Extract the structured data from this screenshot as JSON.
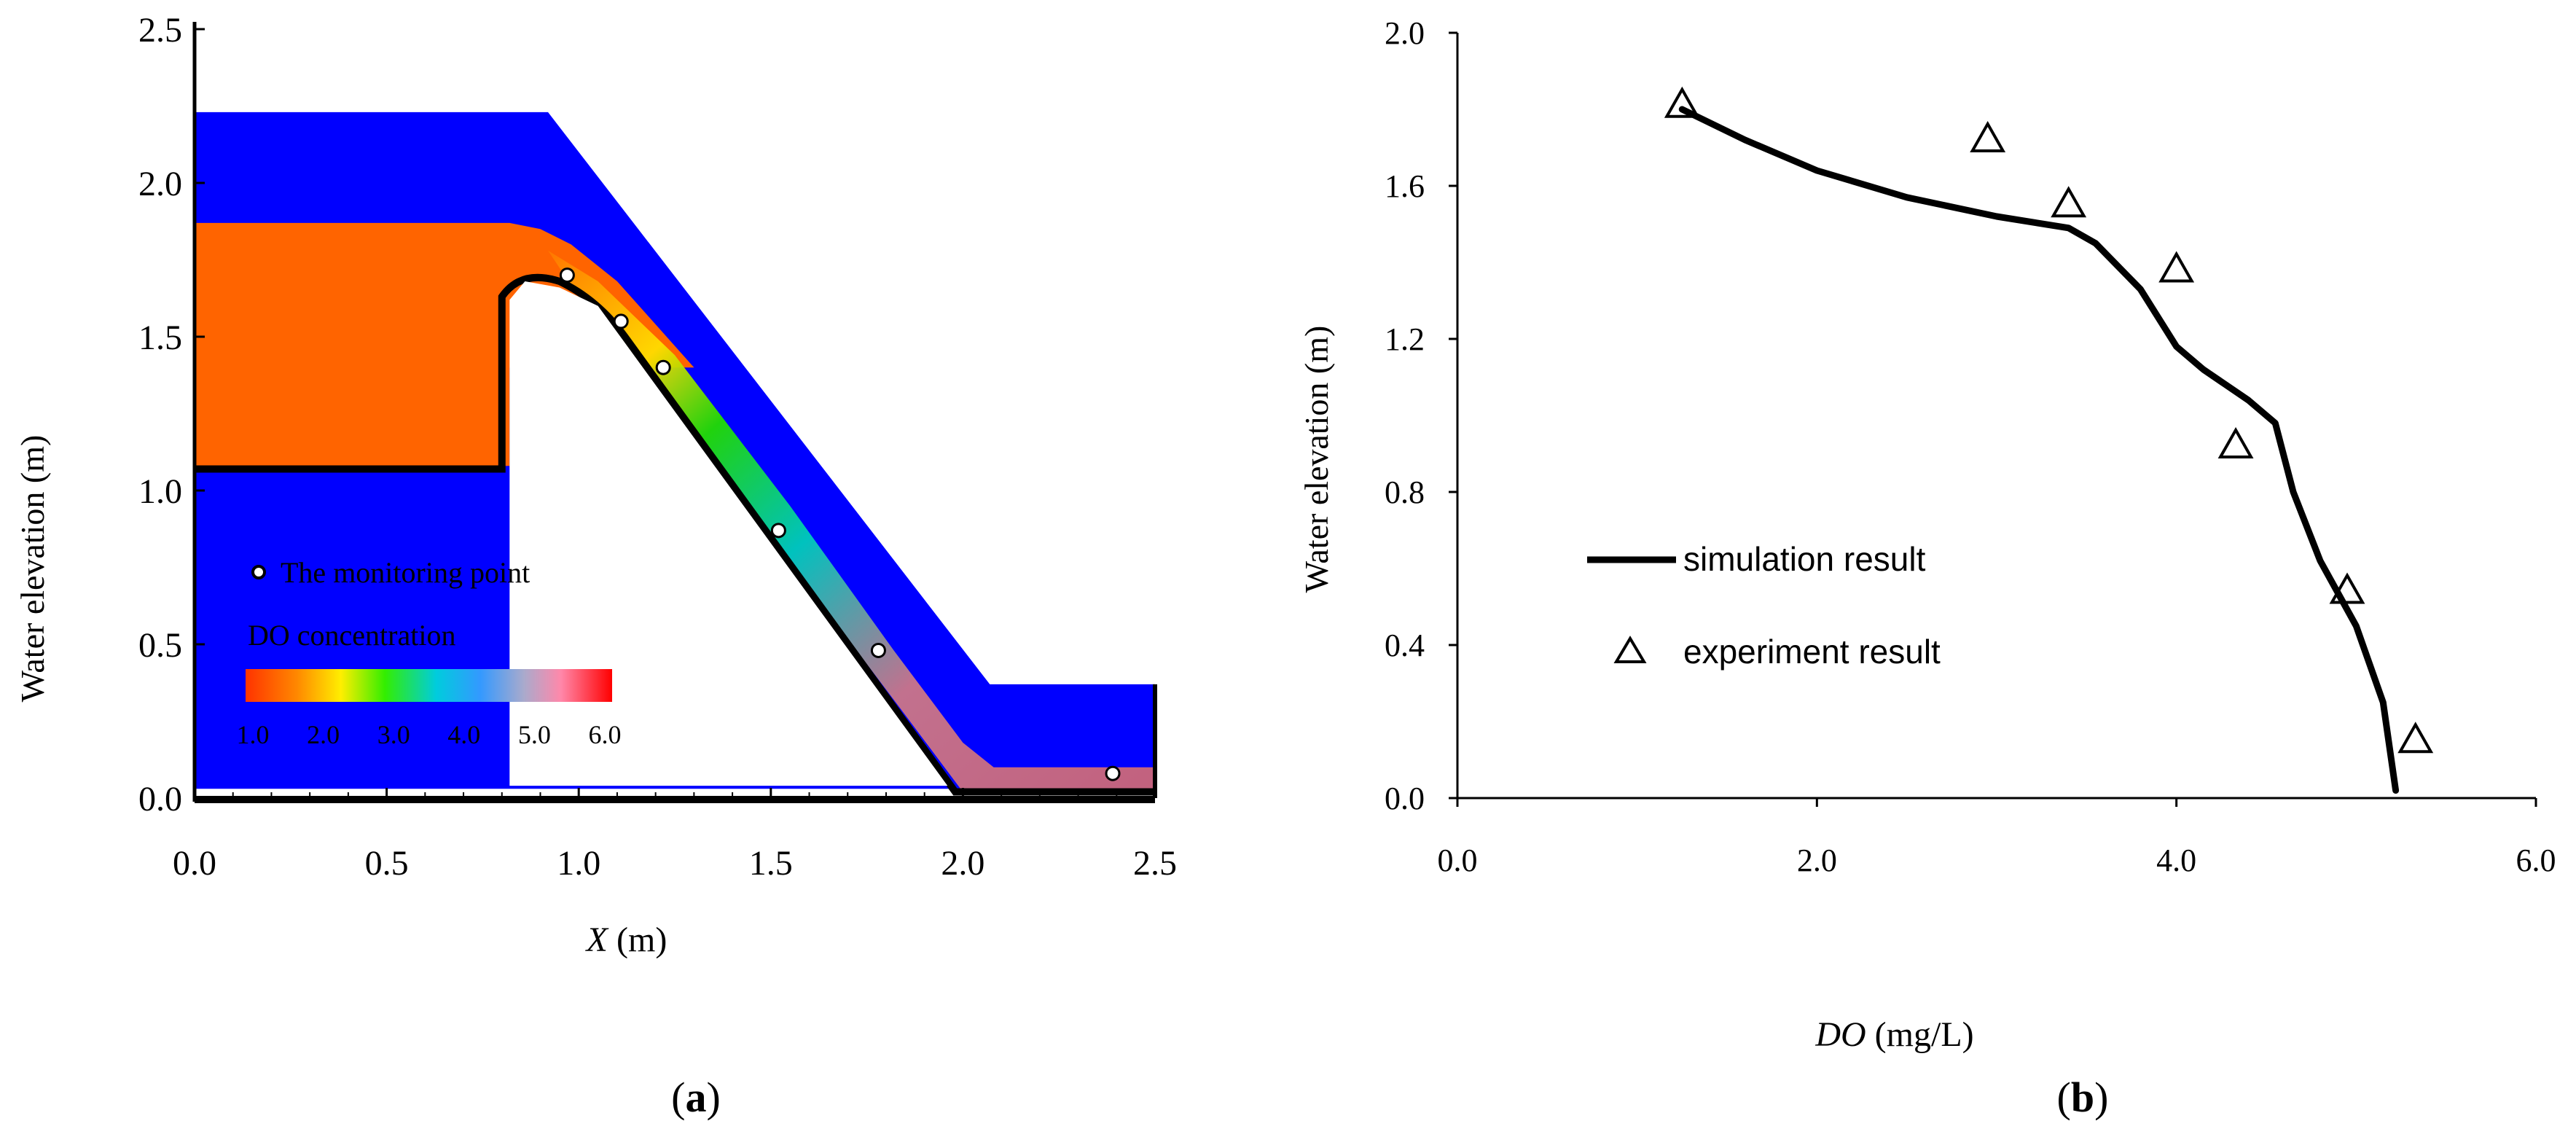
{
  "panel_a": {
    "label": "(a)",
    "label_letter": "a",
    "xlabel_var": "X",
    "xlabel_unit": " (m)",
    "ylabel": "Water elevation (m)",
    "xticks": [
      "0.0",
      "0.5",
      "1.0",
      "1.5",
      "2.0",
      "2.5"
    ],
    "yticks": [
      "0.0",
      "0.5",
      "1.0",
      "1.5",
      "2.0",
      "2.5"
    ],
    "legend_monitor": "The monitoring point",
    "colorbar_title": "DO concentration",
    "colorbar_ticks": [
      "1.0",
      "2.0",
      "3.0",
      "4.0",
      "5.0",
      "6.0"
    ],
    "colors": {
      "water": "#0000ff",
      "do_low": "#ff6400",
      "body": "#000000"
    }
  },
  "panel_b": {
    "label": "(b)",
    "label_letter": "b",
    "xlabel_var": "DO",
    "xlabel_unit": " (mg/L)",
    "ylabel": "Water elevation (m)",
    "xticks": [
      "0.0",
      "2.0",
      "4.0",
      "6.0"
    ],
    "yticks": [
      "0.0",
      "0.4",
      "0.8",
      "1.2",
      "1.6",
      "2.0"
    ],
    "legend": [
      {
        "label": "simulation result",
        "marker": "line"
      },
      {
        "label": "experiment result",
        "marker": "triangle"
      }
    ]
  },
  "chart_data": [
    {
      "type": "heatmap",
      "xlabel": "X (m)",
      "ylabel": "Water elevation (m)",
      "xlim": [
        0,
        2.5
      ],
      "ylim": [
        0,
        2.5
      ],
      "colorbar": {
        "title": "DO concentration",
        "range": [
          1.0,
          6.0
        ]
      },
      "monitoring_points": [
        {
          "x": 0.97,
          "y": 1.7
        },
        {
          "x": 1.11,
          "y": 1.55
        },
        {
          "x": 1.22,
          "y": 1.4
        },
        {
          "x": 1.52,
          "y": 0.87
        },
        {
          "x": 1.78,
          "y": 0.48
        },
        {
          "x": 2.39,
          "y": 0.08
        }
      ]
    },
    {
      "type": "line",
      "xlabel": "DO (mg/L)",
      "ylabel": "Water elevation (m)",
      "xlim": [
        0,
        6.0
      ],
      "ylim": [
        0,
        2.0
      ],
      "series": [
        {
          "name": "simulation result",
          "kind": "line",
          "points": [
            [
              1.25,
              1.8
            ],
            [
              1.6,
              1.72
            ],
            [
              2.0,
              1.64
            ],
            [
              2.5,
              1.57
            ],
            [
              3.0,
              1.52
            ],
            [
              3.4,
              1.49
            ],
            [
              3.55,
              1.45
            ],
            [
              3.8,
              1.33
            ],
            [
              4.0,
              1.18
            ],
            [
              4.15,
              1.12
            ],
            [
              4.4,
              1.04
            ],
            [
              4.55,
              0.98
            ],
            [
              4.65,
              0.8
            ],
            [
              4.8,
              0.62
            ],
            [
              5.0,
              0.45
            ],
            [
              5.15,
              0.25
            ],
            [
              5.22,
              0.02
            ]
          ]
        },
        {
          "name": "experiment result",
          "kind": "scatter",
          "points": [
            [
              1.25,
              1.81
            ],
            [
              2.95,
              1.72
            ],
            [
              3.4,
              1.55
            ],
            [
              4.0,
              1.38
            ],
            [
              4.33,
              0.92
            ],
            [
              4.95,
              0.54
            ],
            [
              5.33,
              0.15
            ]
          ]
        }
      ]
    }
  ]
}
